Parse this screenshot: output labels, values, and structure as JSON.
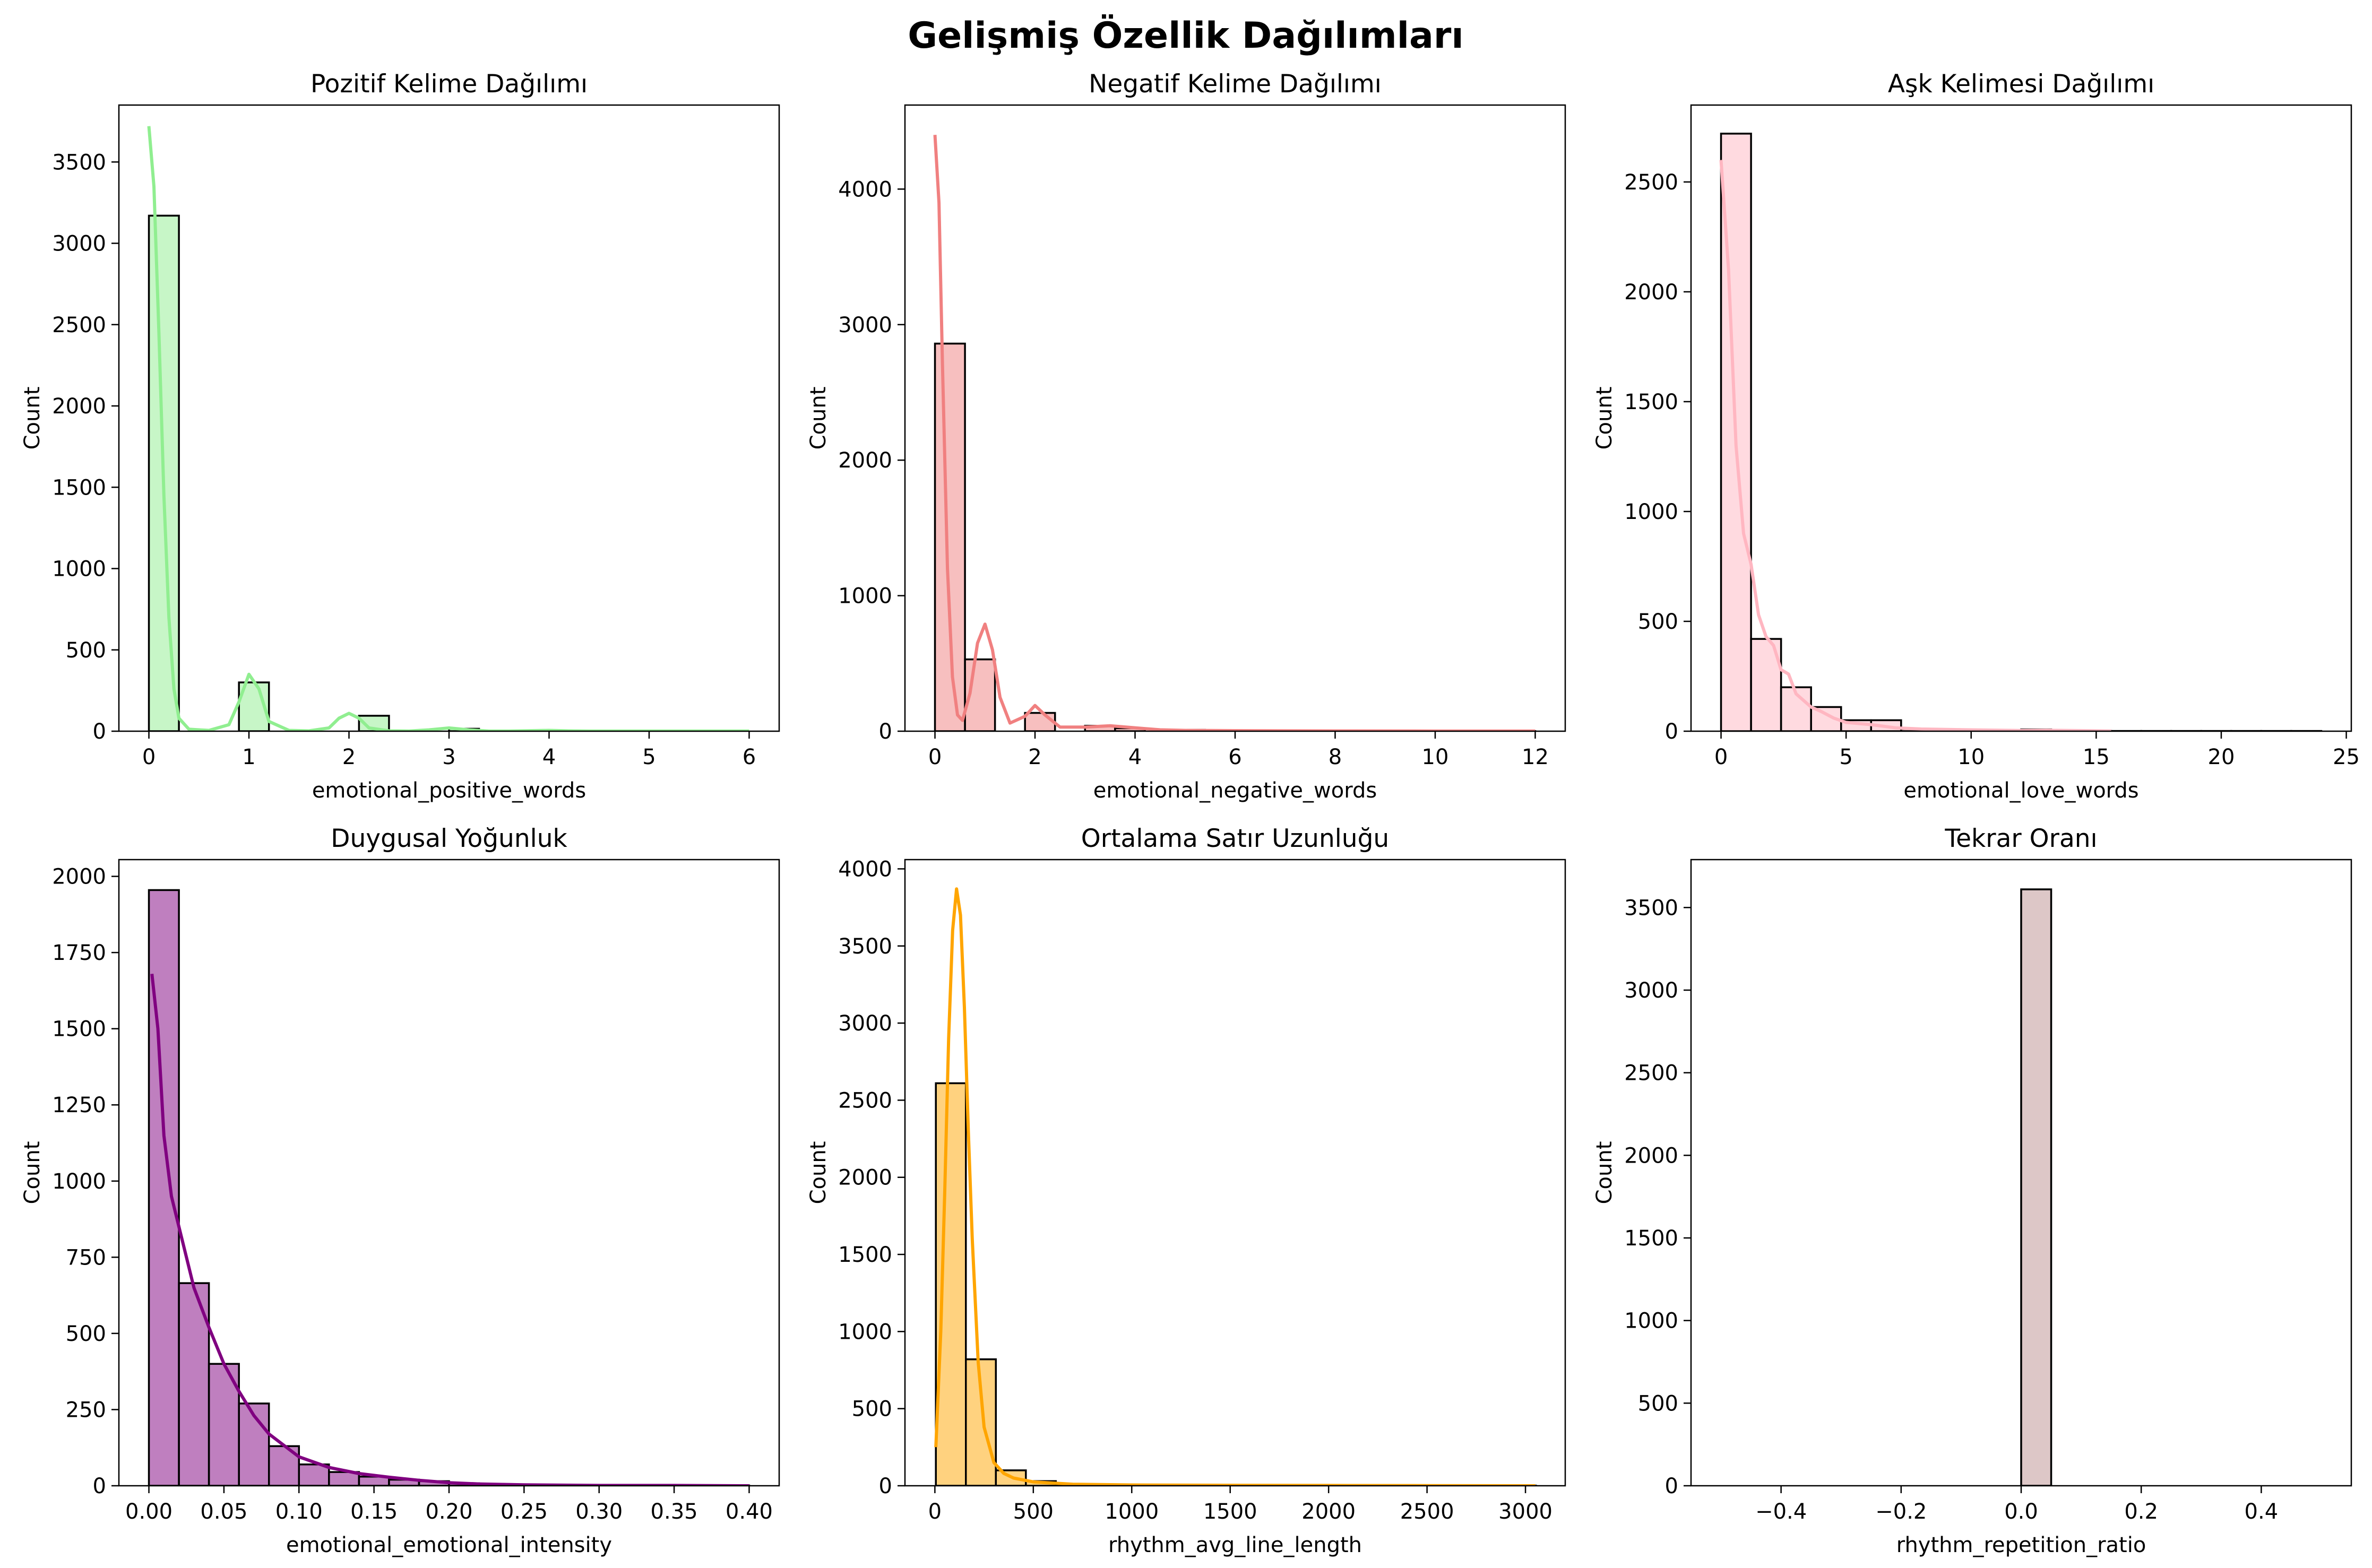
{
  "figure": {
    "title": "Gelişmiş Özellik Dağılımları"
  },
  "chart_data": [
    {
      "type": "bar",
      "title": "Pozitif Kelime Dağılımı",
      "xlabel": "emotional_positive_words",
      "ylabel": "Count",
      "color": "#90ee90",
      "kde_color": "#90ee90",
      "xlim": [
        -0.3,
        6.3
      ],
      "ylim": [
        0,
        3850
      ],
      "xticks": [
        0,
        1,
        2,
        3,
        4,
        5,
        6
      ],
      "xticklabels": [
        "0",
        "1",
        "2",
        "3",
        "4",
        "5",
        "6"
      ],
      "yticks": [
        0,
        500,
        1000,
        1500,
        2000,
        2500,
        3000,
        3500
      ],
      "yticklabels": [
        "0",
        "500",
        "1000",
        "1500",
        "2000",
        "2500",
        "3000",
        "3500"
      ],
      "bins": {
        "start": 0,
        "width": 0.3,
        "counts": [
          3170,
          0,
          0,
          300,
          0,
          0,
          0,
          95,
          0,
          0,
          15,
          0,
          0,
          0,
          3,
          0,
          0,
          1,
          0,
          0
        ]
      },
      "kde": {
        "x": [
          0,
          0.05,
          0.1,
          0.15,
          0.2,
          0.25,
          0.3,
          0.4,
          0.6,
          0.8,
          0.9,
          1.0,
          1.1,
          1.2,
          1.4,
          1.6,
          1.8,
          1.9,
          2.0,
          2.1,
          2.2,
          2.4,
          2.6,
          2.8,
          3.0,
          3.2,
          3.4,
          3.6,
          4.0,
          4.2,
          4.4,
          5.0,
          6.0
        ],
        "y": [
          3720,
          3350,
          2450,
          1450,
          700,
          260,
          80,
          12,
          5,
          40,
          180,
          350,
          260,
          60,
          5,
          2,
          20,
          80,
          110,
          80,
          20,
          2,
          1,
          8,
          20,
          8,
          1,
          1,
          5,
          2,
          1,
          1,
          1
        ]
      }
    },
    {
      "type": "bar",
      "title": "Negatif Kelime Dağılımı",
      "xlabel": "emotional_negative_words",
      "ylabel": "Count",
      "color": "#f08080",
      "kde_color": "#f08080",
      "xlim": [
        -0.6,
        12.6
      ],
      "ylim": [
        0,
        4620
      ],
      "xticks": [
        0,
        2,
        4,
        6,
        8,
        10,
        12
      ],
      "xticklabels": [
        "0",
        "2",
        "4",
        "6",
        "8",
        "10",
        "12"
      ],
      "yticks": [
        0,
        1000,
        2000,
        3000,
        4000
      ],
      "yticklabels": [
        "0",
        "1000",
        "2000",
        "3000",
        "4000"
      ],
      "bins": {
        "start": 0,
        "width": 0.6,
        "counts": [
          2860,
          530,
          0,
          135,
          0,
          40,
          22,
          0,
          10,
          6,
          4,
          3,
          2,
          1,
          1,
          1,
          1,
          1,
          1,
          1
        ]
      },
      "kde": {
        "x": [
          0,
          0.08,
          0.15,
          0.25,
          0.35,
          0.45,
          0.55,
          0.7,
          0.85,
          1.0,
          1.15,
          1.3,
          1.5,
          1.8,
          2.0,
          2.2,
          2.5,
          3.0,
          3.5,
          4.0,
          4.5,
          5.0,
          6.0,
          8.0,
          10.0,
          12.0
        ],
        "y": [
          4400,
          3900,
          2700,
          1200,
          400,
          120,
          80,
          280,
          650,
          790,
          600,
          250,
          60,
          110,
          190,
          120,
          30,
          30,
          40,
          25,
          10,
          6,
          4,
          2,
          1,
          1
        ]
      }
    },
    {
      "type": "bar",
      "title": "Aşk Kelimesi Dağılımı",
      "xlabel": "emotional_love_words",
      "ylabel": "Count",
      "color": "#ffb6c1",
      "kde_color": "#ffb6c1",
      "xlim": [
        -1.2,
        25.2
      ],
      "ylim": [
        0,
        2850
      ],
      "xticks": [
        0,
        5,
        10,
        15,
        20,
        25
      ],
      "xticklabels": [
        "0",
        "5",
        "10",
        "15",
        "20",
        "25"
      ],
      "yticks": [
        0,
        500,
        1000,
        1500,
        2000,
        2500
      ],
      "yticklabels": [
        "0",
        "500",
        "1000",
        "1500",
        "2000",
        "2500"
      ],
      "bins": {
        "start": 0,
        "width": 1.2,
        "counts": [
          2720,
          420,
          200,
          110,
          50,
          50,
          10,
          5,
          3,
          2,
          8,
          2,
          1,
          1,
          1,
          1,
          1,
          1,
          1,
          1
        ]
      },
      "kde": {
        "x": [
          0,
          0.3,
          0.6,
          0.9,
          1.2,
          1.5,
          1.8,
          2.1,
          2.4,
          2.7,
          3.0,
          3.3,
          3.6,
          4.0,
          4.5,
          5.0,
          5.5,
          6.0,
          7.0,
          8.0,
          10.0,
          12.0,
          13.0,
          15.6
        ],
        "y": [
          2600,
          2100,
          1300,
          900,
          760,
          530,
          430,
          390,
          280,
          260,
          170,
          140,
          110,
          90,
          60,
          40,
          35,
          30,
          15,
          10,
          6,
          3,
          4,
          1
        ]
      }
    },
    {
      "type": "bar",
      "title": "Duygusal Yoğunluk",
      "xlabel": "emotional_emotional_intensity",
      "ylabel": "Count",
      "color": "#800080",
      "kde_color": "#800080",
      "xlim": [
        -0.02,
        0.42
      ],
      "ylim": [
        0,
        2055
      ],
      "xticks": [
        0,
        0.05,
        0.1,
        0.15,
        0.2,
        0.25,
        0.3,
        0.35,
        0.4
      ],
      "xticklabels": [
        "0.00",
        "0.05",
        "0.10",
        "0.15",
        "0.20",
        "0.25",
        "0.30",
        "0.35",
        "0.40"
      ],
      "yticks": [
        0,
        250,
        500,
        750,
        1000,
        1250,
        1500,
        1750,
        2000
      ],
      "yticklabels": [
        "0",
        "250",
        "500",
        "750",
        "1000",
        "1250",
        "1500",
        "1750",
        "2000"
      ],
      "bins": {
        "start": 0,
        "width": 0.02,
        "counts": [
          1955,
          665,
          400,
          270,
          130,
          70,
          45,
          30,
          20,
          15,
          8,
          5,
          3,
          2,
          1,
          1,
          1,
          0,
          0,
          1
        ]
      },
      "kde": {
        "x": [
          0.002,
          0.006,
          0.01,
          0.015,
          0.02,
          0.03,
          0.04,
          0.05,
          0.06,
          0.07,
          0.08,
          0.1,
          0.12,
          0.14,
          0.16,
          0.18,
          0.2,
          0.22,
          0.25,
          0.3,
          0.35,
          0.4
        ],
        "y": [
          1680,
          1500,
          1150,
          950,
          850,
          650,
          520,
          400,
          310,
          230,
          170,
          95,
          60,
          40,
          28,
          18,
          10,
          6,
          3,
          1,
          1,
          0
        ]
      }
    },
    {
      "type": "bar",
      "title": "Ortalama Satır Uzunluğu",
      "xlabel": "rhythm_avg_line_length",
      "ylabel": "Count",
      "color": "#ffa500",
      "kde_color": "#ffa500",
      "xlim": [
        -152,
        3202
      ],
      "ylim": [
        0,
        4060
      ],
      "xticks": [
        0,
        500,
        1000,
        1500,
        2000,
        2500,
        3000
      ],
      "xticklabels": [
        "0",
        "500",
        "1000",
        "1500",
        "2000",
        "2500",
        "3000"
      ],
      "yticks": [
        0,
        500,
        1000,
        1500,
        2000,
        2500,
        3000,
        3500,
        4000
      ],
      "yticklabels": [
        "0",
        "500",
        "1000",
        "1500",
        "2000",
        "2500",
        "3000",
        "3500",
        "4000"
      ],
      "bins": {
        "start": 5,
        "width": 152.4,
        "counts": [
          2610,
          820,
          100,
          30,
          12,
          5,
          3,
          2,
          1,
          1,
          1,
          1,
          1,
          0,
          0,
          0,
          0,
          0,
          0,
          1
        ]
      },
      "kde": {
        "x": [
          5,
          30,
          50,
          70,
          90,
          110,
          130,
          150,
          170,
          190,
          220,
          250,
          300,
          350,
          400,
          500,
          700,
          1000,
          1500,
          2000,
          2500,
          3050
        ],
        "y": [
          250,
          1000,
          1900,
          2900,
          3600,
          3870,
          3700,
          3100,
          2300,
          1600,
          800,
          380,
          150,
          80,
          50,
          25,
          10,
          5,
          3,
          2,
          1,
          0
        ]
      }
    },
    {
      "type": "bar",
      "title": "Tekrar Oranı",
      "xlabel": "rhythm_repetition_ratio",
      "ylabel": "Count",
      "color": "#bc8f8f",
      "kde_color": "",
      "xlim": [
        -0.55,
        0.55
      ],
      "ylim": [
        0,
        3790
      ],
      "xticks": [
        -0.4,
        -0.2,
        0,
        0.2,
        0.4
      ],
      "xticklabels": [
        "−0.4",
        "−0.2",
        "0.0",
        "0.2",
        "0.4"
      ],
      "yticks": [
        0,
        500,
        1000,
        1500,
        2000,
        2500,
        3000,
        3500
      ],
      "yticklabels": [
        "0",
        "500",
        "1000",
        "1500",
        "2000",
        "2500",
        "3000",
        "3500"
      ],
      "bins": {
        "start": -0.5,
        "width": 0.05,
        "counts": [
          0,
          0,
          0,
          0,
          0,
          0,
          0,
          0,
          0,
          0,
          3610,
          0,
          0,
          0,
          0,
          0,
          0,
          0,
          0,
          0
        ]
      },
      "kde": {
        "x": [],
        "y": []
      }
    }
  ]
}
